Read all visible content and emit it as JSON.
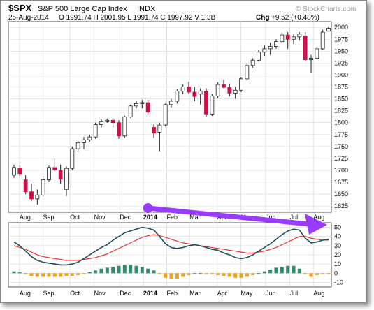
{
  "header": {
    "ticker": "$SPX",
    "name": "S&P 500 Large Cap Index",
    "exchange": "INDX",
    "date": "25-Aug-2014",
    "ohlc": "O 1991.74  H 2001.95  L 1991.74  C 1997.92  V 1.3B",
    "chg_label": "Chg",
    "chg_value": "+9.52 (+0.48%)",
    "watermark": "© StockCharts.com"
  },
  "colors": {
    "up": "#ffffff",
    "down": "#cc1144",
    "candle_outline": "#222222",
    "macd_line": "#1b4f5a",
    "signal_line": "#e8281e",
    "hist_pos": "#2f8a6e",
    "hist_neg": "#f0a020",
    "arrow": "#9a3cff",
    "grid": "#d8d8d8"
  },
  "chart_data": {
    "type": "candlestick",
    "price_axis": {
      "ylim": [
        1612,
        2012
      ],
      "ticks": [
        "2000",
        "1975",
        "1950",
        "1925",
        "1900",
        "1875",
        "1850",
        "1825",
        "1800",
        "1775",
        "1750",
        "1725",
        "1700",
        "1675",
        "1650",
        "1625"
      ]
    },
    "x_labels_top": [
      "Aug",
      "Sep",
      "Oct",
      "Nov",
      "Dec",
      "2014",
      "Feb",
      "Mar",
      "Apr",
      "May",
      "Jun",
      "Jul",
      "Aug"
    ],
    "x_labels_bottom": [
      "Aug",
      "Sep",
      "Oct",
      "Nov",
      "Dec",
      "2014",
      "Feb",
      "Mar",
      "Apr",
      "May",
      "Jun",
      "Jul",
      "Aug"
    ],
    "candles": [
      {
        "o": 1690,
        "h": 1712,
        "l": 1684,
        "c": 1706
      },
      {
        "o": 1705,
        "h": 1710,
        "l": 1688,
        "c": 1693
      },
      {
        "o": 1680,
        "h": 1690,
        "l": 1650,
        "c": 1655
      },
      {
        "o": 1655,
        "h": 1672,
        "l": 1635,
        "c": 1640
      },
      {
        "o": 1640,
        "h": 1660,
        "l": 1628,
        "c": 1648
      },
      {
        "o": 1648,
        "h": 1688,
        "l": 1645,
        "c": 1680
      },
      {
        "o": 1680,
        "h": 1710,
        "l": 1676,
        "c": 1706
      },
      {
        "o": 1706,
        "h": 1725,
        "l": 1698,
        "c": 1701
      },
      {
        "o": 1700,
        "h": 1712,
        "l": 1672,
        "c": 1681
      },
      {
        "o": 1660,
        "h": 1708,
        "l": 1646,
        "c": 1704
      },
      {
        "o": 1704,
        "h": 1750,
        "l": 1700,
        "c": 1745
      },
      {
        "o": 1745,
        "h": 1762,
        "l": 1738,
        "c": 1758
      },
      {
        "o": 1758,
        "h": 1770,
        "l": 1744,
        "c": 1764
      },
      {
        "o": 1764,
        "h": 1775,
        "l": 1760,
        "c": 1770
      },
      {
        "o": 1770,
        "h": 1800,
        "l": 1766,
        "c": 1796
      },
      {
        "o": 1796,
        "h": 1808,
        "l": 1790,
        "c": 1802
      },
      {
        "o": 1802,
        "h": 1808,
        "l": 1800,
        "c": 1805
      },
      {
        "o": 1805,
        "h": 1810,
        "l": 1790,
        "c": 1800
      },
      {
        "o": 1800,
        "h": 1805,
        "l": 1766,
        "c": 1772
      },
      {
        "o": 1772,
        "h": 1815,
        "l": 1768,
        "c": 1812
      },
      {
        "o": 1812,
        "h": 1838,
        "l": 1810,
        "c": 1835
      },
      {
        "o": 1835,
        "h": 1845,
        "l": 1830,
        "c": 1840
      },
      {
        "o": 1840,
        "h": 1848,
        "l": 1830,
        "c": 1842
      },
      {
        "o": 1842,
        "h": 1848,
        "l": 1818,
        "c": 1822
      },
      {
        "o": 1790,
        "h": 1796,
        "l": 1768,
        "c": 1778
      },
      {
        "o": 1780,
        "h": 1800,
        "l": 1740,
        "c": 1795
      },
      {
        "o": 1795,
        "h": 1840,
        "l": 1792,
        "c": 1838
      },
      {
        "o": 1838,
        "h": 1850,
        "l": 1832,
        "c": 1845
      },
      {
        "o": 1845,
        "h": 1870,
        "l": 1840,
        "c": 1866
      },
      {
        "o": 1866,
        "h": 1880,
        "l": 1860,
        "c": 1875
      },
      {
        "o": 1875,
        "h": 1886,
        "l": 1860,
        "c": 1864
      },
      {
        "o": 1864,
        "h": 1875,
        "l": 1845,
        "c": 1855
      },
      {
        "o": 1860,
        "h": 1872,
        "l": 1838,
        "c": 1866
      },
      {
        "o": 1866,
        "h": 1872,
        "l": 1812,
        "c": 1818
      },
      {
        "o": 1818,
        "h": 1860,
        "l": 1814,
        "c": 1856
      },
      {
        "o": 1856,
        "h": 1885,
        "l": 1852,
        "c": 1880
      },
      {
        "o": 1880,
        "h": 1890,
        "l": 1872,
        "c": 1874
      },
      {
        "o": 1874,
        "h": 1882,
        "l": 1855,
        "c": 1862
      },
      {
        "o": 1862,
        "h": 1875,
        "l": 1850,
        "c": 1868
      },
      {
        "o": 1868,
        "h": 1895,
        "l": 1864,
        "c": 1892
      },
      {
        "o": 1892,
        "h": 1925,
        "l": 1888,
        "c": 1920
      },
      {
        "o": 1920,
        "h": 1935,
        "l": 1915,
        "c": 1931
      },
      {
        "o": 1931,
        "h": 1952,
        "l": 1928,
        "c": 1948
      },
      {
        "o": 1948,
        "h": 1962,
        "l": 1940,
        "c": 1955
      },
      {
        "o": 1955,
        "h": 1968,
        "l": 1942,
        "c": 1960
      },
      {
        "o": 1960,
        "h": 1975,
        "l": 1955,
        "c": 1970
      },
      {
        "o": 1970,
        "h": 1988,
        "l": 1966,
        "c": 1984
      },
      {
        "o": 1984,
        "h": 1990,
        "l": 1955,
        "c": 1975
      },
      {
        "o": 1975,
        "h": 1985,
        "l": 1965,
        "c": 1980
      },
      {
        "o": 1980,
        "h": 1990,
        "l": 1972,
        "c": 1986
      },
      {
        "o": 1982,
        "h": 1990,
        "l": 1930,
        "c": 1932
      },
      {
        "o": 1932,
        "h": 1942,
        "l": 1905,
        "c": 1935
      },
      {
        "o": 1935,
        "h": 1960,
        "l": 1932,
        "c": 1955
      },
      {
        "o": 1955,
        "h": 1995,
        "l": 1952,
        "c": 1990
      },
      {
        "o": 1992,
        "h": 2002,
        "l": 1991,
        "c": 1998
      }
    ],
    "macd_axis": {
      "ylim": [
        -15,
        55
      ],
      "ticks": [
        "50",
        "40",
        "30",
        "20",
        "10",
        "0",
        "-10"
      ]
    },
    "macd": [
      34,
      30,
      24,
      18,
      14,
      12,
      11,
      10,
      9,
      9,
      10,
      12,
      16,
      20,
      24,
      28,
      31,
      36,
      40,
      44,
      46,
      48,
      50,
      49,
      47,
      40,
      32,
      28,
      27,
      28,
      30,
      31,
      30,
      28,
      26,
      25,
      22,
      20,
      17,
      16,
      17,
      20,
      24,
      28,
      32,
      37,
      42,
      46,
      48,
      47,
      38,
      33,
      34,
      36,
      37
    ],
    "signal": [
      30,
      28,
      26,
      23,
      20,
      18,
      17,
      16,
      15,
      14,
      14,
      14,
      15,
      16,
      17,
      19,
      21,
      24,
      27,
      30,
      33,
      36,
      39,
      41,
      42,
      41,
      39,
      37,
      35,
      33,
      32,
      31,
      30,
      29,
      28,
      27,
      26,
      25,
      24,
      23,
      22,
      22,
      23,
      24,
      26,
      28,
      31,
      34,
      37,
      40,
      40,
      38,
      37,
      36,
      36
    ],
    "histogram": [
      2,
      1,
      -1,
      -3,
      -4,
      -4,
      -4,
      -4,
      -4,
      -3,
      -3,
      -2,
      -1,
      1,
      3,
      5,
      6,
      7,
      8,
      9,
      9,
      8,
      7,
      5,
      3,
      -1,
      -5,
      -6,
      -6,
      -4,
      -2,
      0,
      0,
      -1,
      -1,
      -2,
      -3,
      -4,
      -5,
      -5,
      -4,
      -2,
      0,
      2,
      4,
      6,
      7,
      8,
      8,
      5,
      -1,
      -4,
      -2,
      -1,
      -1
    ],
    "annotation": {
      "type": "arrow",
      "from_bar": 23,
      "from_macd": 56,
      "to_bar": 54,
      "to_macd": 43
    }
  }
}
